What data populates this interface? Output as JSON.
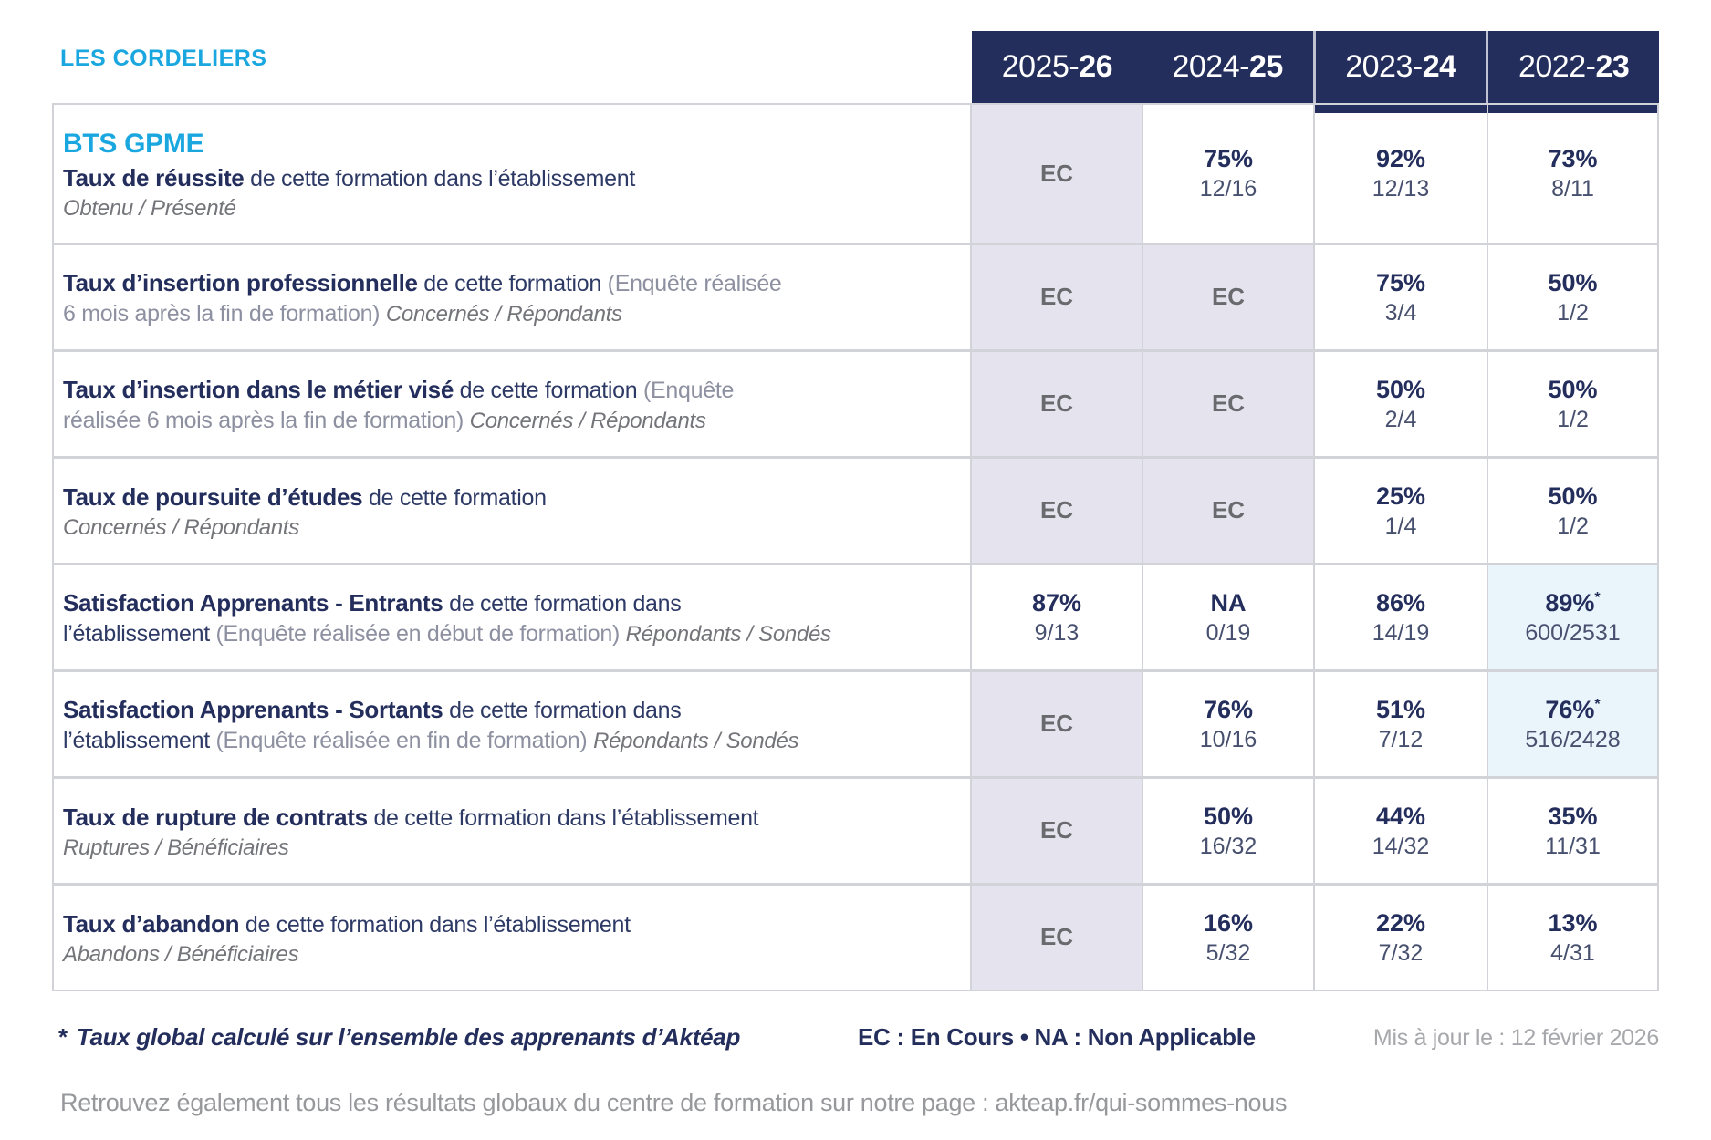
{
  "brand": "LES CORDELIERS",
  "header": {
    "years": [
      {
        "pre": "2025-",
        "suf": "26"
      },
      {
        "pre": "2024-",
        "suf": "25"
      },
      {
        "pre": "2023-",
        "suf": "24"
      },
      {
        "pre": "2022-",
        "suf": "23"
      }
    ]
  },
  "colors": {
    "navy": "#242e5c",
    "blue": "#1aa7e0",
    "lavender_cell": "#e5e4ee",
    "highlight_cell": "#eaf4fb",
    "border": "#d2d2d9"
  },
  "table": {
    "rows": [
      {
        "label": [
          [
            {
              "t": "BTS GPME",
              "s": "bts"
            }
          ],
          [
            {
              "t": "Taux de réussite",
              "s": "title"
            },
            {
              "t": " de cette formation dans l’établissement",
              "s": "plain"
            }
          ],
          [
            {
              "t": "Obtenu / Présenté",
              "s": "italic"
            }
          ]
        ],
        "cells": [
          {
            "v": "EC",
            "ec": true
          },
          {
            "v": "75%",
            "f": "12/16"
          },
          {
            "v": "92%",
            "f": "12/13",
            "navytop": true
          },
          {
            "v": "73%",
            "f": "8/11",
            "navytop": true
          }
        ]
      },
      {
        "label": [
          [
            {
              "t": "Taux d’insertion professionnelle",
              "s": "title"
            },
            {
              "t": " de cette formation ",
              "s": "plain"
            },
            {
              "t": "(Enquête réalisée",
              "s": "muted"
            }
          ],
          [
            {
              "t": "6 mois après la fin de formation) ",
              "s": "muted"
            },
            {
              "t": "Concernés / Répondants",
              "s": "italic"
            }
          ]
        ],
        "cells": [
          {
            "v": "EC",
            "ec": true
          },
          {
            "v": "EC",
            "ec": true
          },
          {
            "v": "75%",
            "f": "3/4"
          },
          {
            "v": "50%",
            "f": "1/2"
          }
        ]
      },
      {
        "label": [
          [
            {
              "t": "Taux d’insertion dans le métier visé",
              "s": "title"
            },
            {
              "t": " de cette formation ",
              "s": "plain"
            },
            {
              "t": "(Enquête",
              "s": "muted"
            }
          ],
          [
            {
              "t": "réalisée 6 mois après la fin de formation) ",
              "s": "muted"
            },
            {
              "t": "Concernés / Répondants",
              "s": "italic"
            }
          ]
        ],
        "cells": [
          {
            "v": "EC",
            "ec": true
          },
          {
            "v": "EC",
            "ec": true
          },
          {
            "v": "50%",
            "f": "2/4"
          },
          {
            "v": "50%",
            "f": "1/2"
          }
        ]
      },
      {
        "label": [
          [
            {
              "t": "Taux de poursuite d’études",
              "s": "title"
            },
            {
              "t": " de cette formation",
              "s": "plain"
            }
          ],
          [
            {
              "t": "Concernés / Répondants",
              "s": "italic"
            }
          ]
        ],
        "cells": [
          {
            "v": "EC",
            "ec": true
          },
          {
            "v": "EC",
            "ec": true
          },
          {
            "v": "25%",
            "f": "1/4"
          },
          {
            "v": "50%",
            "f": "1/2"
          }
        ]
      },
      {
        "label": [
          [
            {
              "t": "Satisfaction Apprenants - Entrants",
              "s": "title"
            },
            {
              "t": " de cette formation dans",
              "s": "plain"
            }
          ],
          [
            {
              "t": "l’établissement ",
              "s": "plain"
            },
            {
              "t": "(Enquête réalisée en début de formation) ",
              "s": "muted"
            },
            {
              "t": "Répondants / Sondés",
              "s": "italic"
            }
          ]
        ],
        "cells": [
          {
            "v": "87%",
            "f": "9/13"
          },
          {
            "v": "NA",
            "f": "0/19"
          },
          {
            "v": "86%",
            "f": "14/19"
          },
          {
            "v": "89%",
            "f": "600/2531",
            "star": true,
            "hl": true
          }
        ]
      },
      {
        "label": [
          [
            {
              "t": "Satisfaction Apprenants - Sortants",
              "s": "title"
            },
            {
              "t": " de cette formation dans",
              "s": "plain"
            }
          ],
          [
            {
              "t": "l’établissement ",
              "s": "plain"
            },
            {
              "t": "(Enquête réalisée en fin de formation) ",
              "s": "muted"
            },
            {
              "t": "Répondants / Sondés",
              "s": "italic"
            }
          ]
        ],
        "cells": [
          {
            "v": "EC",
            "ec": true
          },
          {
            "v": "76%",
            "f": "10/16"
          },
          {
            "v": "51%",
            "f": "7/12"
          },
          {
            "v": "76%",
            "f": "516/2428",
            "star": true,
            "hl": true
          }
        ]
      },
      {
        "label": [
          [
            {
              "t": "Taux de rupture de contrats",
              "s": "title"
            },
            {
              "t": " de cette formation dans l’établissement",
              "s": "plain"
            }
          ],
          [
            {
              "t": "Ruptures / Bénéficiaires",
              "s": "italic"
            }
          ]
        ],
        "cells": [
          {
            "v": "EC",
            "ec": true
          },
          {
            "v": "50%",
            "f": "16/32"
          },
          {
            "v": "44%",
            "f": "14/32"
          },
          {
            "v": "35%",
            "f": "11/31"
          }
        ]
      },
      {
        "label": [
          [
            {
              "t": "Taux d’abandon",
              "s": "title"
            },
            {
              "t": " de cette formation dans l’établissement",
              "s": "plain"
            }
          ],
          [
            {
              "t": "Abandons / Bénéficiaires",
              "s": "italic"
            }
          ]
        ],
        "cells": [
          {
            "v": "EC",
            "ec": true
          },
          {
            "v": "16%",
            "f": "5/32"
          },
          {
            "v": "22%",
            "f": "7/32"
          },
          {
            "v": "13%",
            "f": "4/31"
          }
        ]
      }
    ]
  },
  "footer": {
    "star": "*",
    "note": "Taux global calculé sur l’ensemble des apprenants d’Aktéap",
    "legend": "EC : En Cours  •  NA : Non Applicable",
    "updated": "Mis à jour le : 12 février 2026",
    "bottom": "Retrouvez également tous les résultats globaux du centre de formation sur notre page : akteap.fr/qui-sommes-nous"
  }
}
